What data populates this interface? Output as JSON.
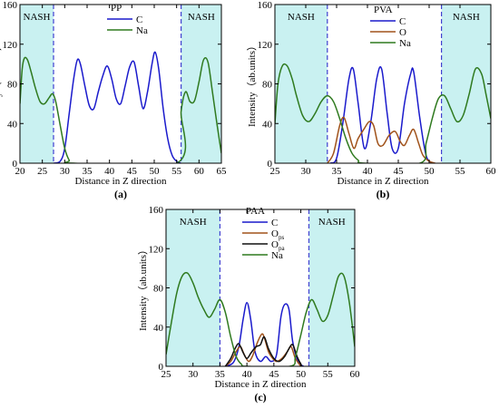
{
  "figure": {
    "panels": [
      {
        "id": "a",
        "caption": "(a)",
        "title": "PP",
        "region_left": "NASH",
        "region_right": "NASH",
        "xlabel": "Distance in Z direction",
        "ylabel": "Intensity（ab.units）"
      },
      {
        "id": "b",
        "caption": "(b)",
        "title": "PVA",
        "region_left": "NASH",
        "region_right": "NASH",
        "xlabel": "Distance in Z direction",
        "ylabel": "Intensity（ab.units）"
      },
      {
        "id": "c",
        "caption": "(c)",
        "title": "PAA",
        "region_left": "NASH",
        "region_right": "NASH",
        "xlabel": "Distance in Z direction",
        "ylabel": "Intensity（ab.units）"
      }
    ]
  },
  "colors": {
    "C": "#1a1acc",
    "O": "#a0521a",
    "O_ps": "#a0521a",
    "O_pa": "#111111",
    "Na": "#2f7a1f",
    "shade": "#c9f1f1",
    "divider": "#4040d0"
  },
  "chart_data": [
    {
      "type": "line",
      "title": "PP",
      "xlabel": "Distance in Z direction",
      "ylabel": "Intensity（ab.units）",
      "xlim": [
        20,
        65
      ],
      "ylim": [
        0,
        160
      ],
      "xticks": [
        20,
        25,
        30,
        35,
        40,
        45,
        50,
        55,
        60,
        65
      ],
      "yticks": [
        0,
        40,
        80,
        120,
        160
      ],
      "shaded_x_ranges": [
        [
          20,
          27.5
        ],
        [
          56,
          65
        ]
      ],
      "divider_x": [
        27.5,
        56
      ],
      "legend": [
        "C",
        "Na"
      ],
      "legend_position": "top-center",
      "series": [
        {
          "name": "C",
          "x": [
            27.5,
            29,
            30,
            31,
            32,
            32.8,
            33.5,
            34.5,
            35.5,
            36.5,
            37.5,
            38.5,
            39.5,
            40.5,
            41.5,
            42.5,
            43.5,
            44.5,
            45.5,
            46.5,
            47.5,
            48.5,
            49.5,
            50.2,
            51,
            52,
            53,
            54,
            55,
            56
          ],
          "y": [
            0,
            2,
            15,
            50,
            85,
            104,
            100,
            78,
            58,
            55,
            72,
            88,
            98,
            85,
            65,
            60,
            78,
            97,
            102,
            78,
            55,
            72,
            100,
            112,
            95,
            55,
            25,
            8,
            2,
            0
          ]
        },
        {
          "name": "Na",
          "x": [
            20,
            20.5,
            21,
            21.7,
            22.5,
            23.5,
            24.5,
            25.5,
            26.5,
            27.3,
            28,
            29,
            30,
            31,
            32,
            55,
            56,
            57,
            58,
            59,
            60,
            61,
            62,
            63,
            64,
            65
          ],
          "y": [
            60,
            95,
            106,
            104,
            92,
            75,
            62,
            60,
            66,
            70,
            62,
            38,
            15,
            3,
            0,
            0,
            52,
            72,
            62,
            63,
            82,
            104,
            102,
            72,
            40,
            10
          ]
        }
      ]
    },
    {
      "type": "line",
      "title": "PVA",
      "xlabel": "Distance in Z direction",
      "ylabel": "Intensity（ab.units）",
      "xlim": [
        25,
        60
      ],
      "ylim": [
        0,
        160
      ],
      "xticks": [
        25,
        30,
        35,
        40,
        45,
        50,
        55,
        60
      ],
      "yticks": [
        0,
        40,
        80,
        120,
        160
      ],
      "shaded_x_ranges": [
        [
          25,
          33.5
        ],
        [
          52,
          60
        ]
      ],
      "divider_x": [
        33.5,
        52
      ],
      "legend": [
        "C",
        "O",
        "Na"
      ],
      "legend_position": "top-center",
      "series": [
        {
          "name": "C",
          "x": [
            34,
            35,
            36,
            37,
            37.7,
            38.5,
            39.5,
            40.5,
            41.5,
            42.3,
            43.2,
            44,
            45,
            46,
            47,
            47.5,
            48.5,
            49.5,
            50.5
          ],
          "y": [
            0,
            5,
            40,
            85,
            95,
            60,
            15,
            40,
            85,
            95,
            50,
            15,
            15,
            60,
            90,
            92,
            45,
            8,
            0
          ]
        },
        {
          "name": "O",
          "x": [
            33.5,
            34.5,
            35.5,
            36.2,
            37,
            37.8,
            38.5,
            39.5,
            40.3,
            41,
            41.7,
            42.5,
            43.5,
            44.5,
            45.3,
            46,
            46.8,
            47.5,
            48.3,
            49,
            50,
            51
          ],
          "y": [
            0,
            10,
            38,
            46,
            30,
            15,
            25,
            35,
            42,
            38,
            20,
            18,
            28,
            32,
            22,
            18,
            28,
            34,
            20,
            8,
            2,
            0
          ]
        },
        {
          "name": "Na",
          "x": [
            25,
            25.5,
            26.2,
            27,
            27.8,
            28.5,
            29.5,
            30.5,
            31.5,
            32.5,
            33.5,
            34.5,
            35.5,
            36.5,
            37.5,
            38.5,
            39.5,
            48.5,
            49.5,
            50.5,
            51.5,
            52.5,
            53.5,
            54.5,
            55.5,
            56.5,
            57.5,
            58.5,
            59.2,
            60
          ],
          "y": [
            40,
            80,
            98,
            98,
            85,
            68,
            48,
            42,
            50,
            62,
            68,
            62,
            45,
            25,
            10,
            3,
            0,
            0,
            20,
            45,
            65,
            68,
            55,
            42,
            48,
            70,
            95,
            90,
            70,
            45
          ]
        }
      ]
    },
    {
      "type": "line",
      "title": "PAA",
      "xlabel": "Distance in Z direction",
      "ylabel": "Intensity（ab.units）",
      "xlim": [
        25,
        60
      ],
      "ylim": [
        0,
        160
      ],
      "xticks": [
        25,
        30,
        35,
        40,
        45,
        50,
        55,
        60
      ],
      "yticks": [
        0,
        40,
        80,
        120,
        160
      ],
      "shaded_x_ranges": [
        [
          25,
          35
        ],
        [
          51.5,
          60
        ]
      ],
      "divider_x": [
        35,
        51.5
      ],
      "legend": [
        "C",
        "Ops",
        "Opa",
        "Na"
      ],
      "legend_position": "top-center",
      "series": [
        {
          "name": "C",
          "x": [
            36,
            37.5,
            38.5,
            39.3,
            40,
            40.7,
            41.5,
            42.5,
            43.5,
            44.5,
            45.5,
            46.3,
            47,
            47.8,
            48.5,
            49.5,
            50.5
          ],
          "y": [
            0,
            4,
            20,
            48,
            65,
            48,
            15,
            5,
            10,
            5,
            12,
            50,
            63,
            58,
            25,
            5,
            0
          ]
        },
        {
          "name": "Ops",
          "x": [
            36,
            37,
            38,
            38.8,
            39.5,
            40.3,
            41,
            42,
            42.8,
            43.3,
            44,
            44.8,
            45.5,
            46.5,
            47.5,
            48.2,
            49,
            50
          ],
          "y": [
            0,
            5,
            15,
            20,
            12,
            5,
            10,
            25,
            33,
            28,
            15,
            8,
            5,
            8,
            15,
            20,
            8,
            0
          ]
        },
        {
          "name": "Opa",
          "x": [
            36,
            37,
            37.8,
            38.5,
            39.3,
            40,
            40.8,
            41.7,
            42.5,
            43.2,
            44,
            45,
            46,
            47,
            47.8,
            48.5,
            49.3,
            50.2
          ],
          "y": [
            0,
            8,
            18,
            23,
            14,
            8,
            14,
            20,
            22,
            30,
            18,
            8,
            5,
            10,
            18,
            22,
            10,
            0
          ]
        },
        {
          "name": "Na",
          "x": [
            25,
            26,
            27,
            28,
            29,
            30,
            31,
            32,
            33,
            34,
            35,
            36,
            37,
            38,
            39,
            40,
            48,
            49,
            50,
            51,
            52,
            53,
            54,
            55,
            56,
            57,
            58,
            59,
            60
          ],
          "y": [
            12,
            45,
            75,
            92,
            95,
            85,
            70,
            58,
            50,
            58,
            68,
            55,
            30,
            10,
            2,
            0,
            0,
            10,
            32,
            55,
            68,
            58,
            46,
            52,
            72,
            92,
            92,
            65,
            20
          ]
        }
      ]
    }
  ]
}
